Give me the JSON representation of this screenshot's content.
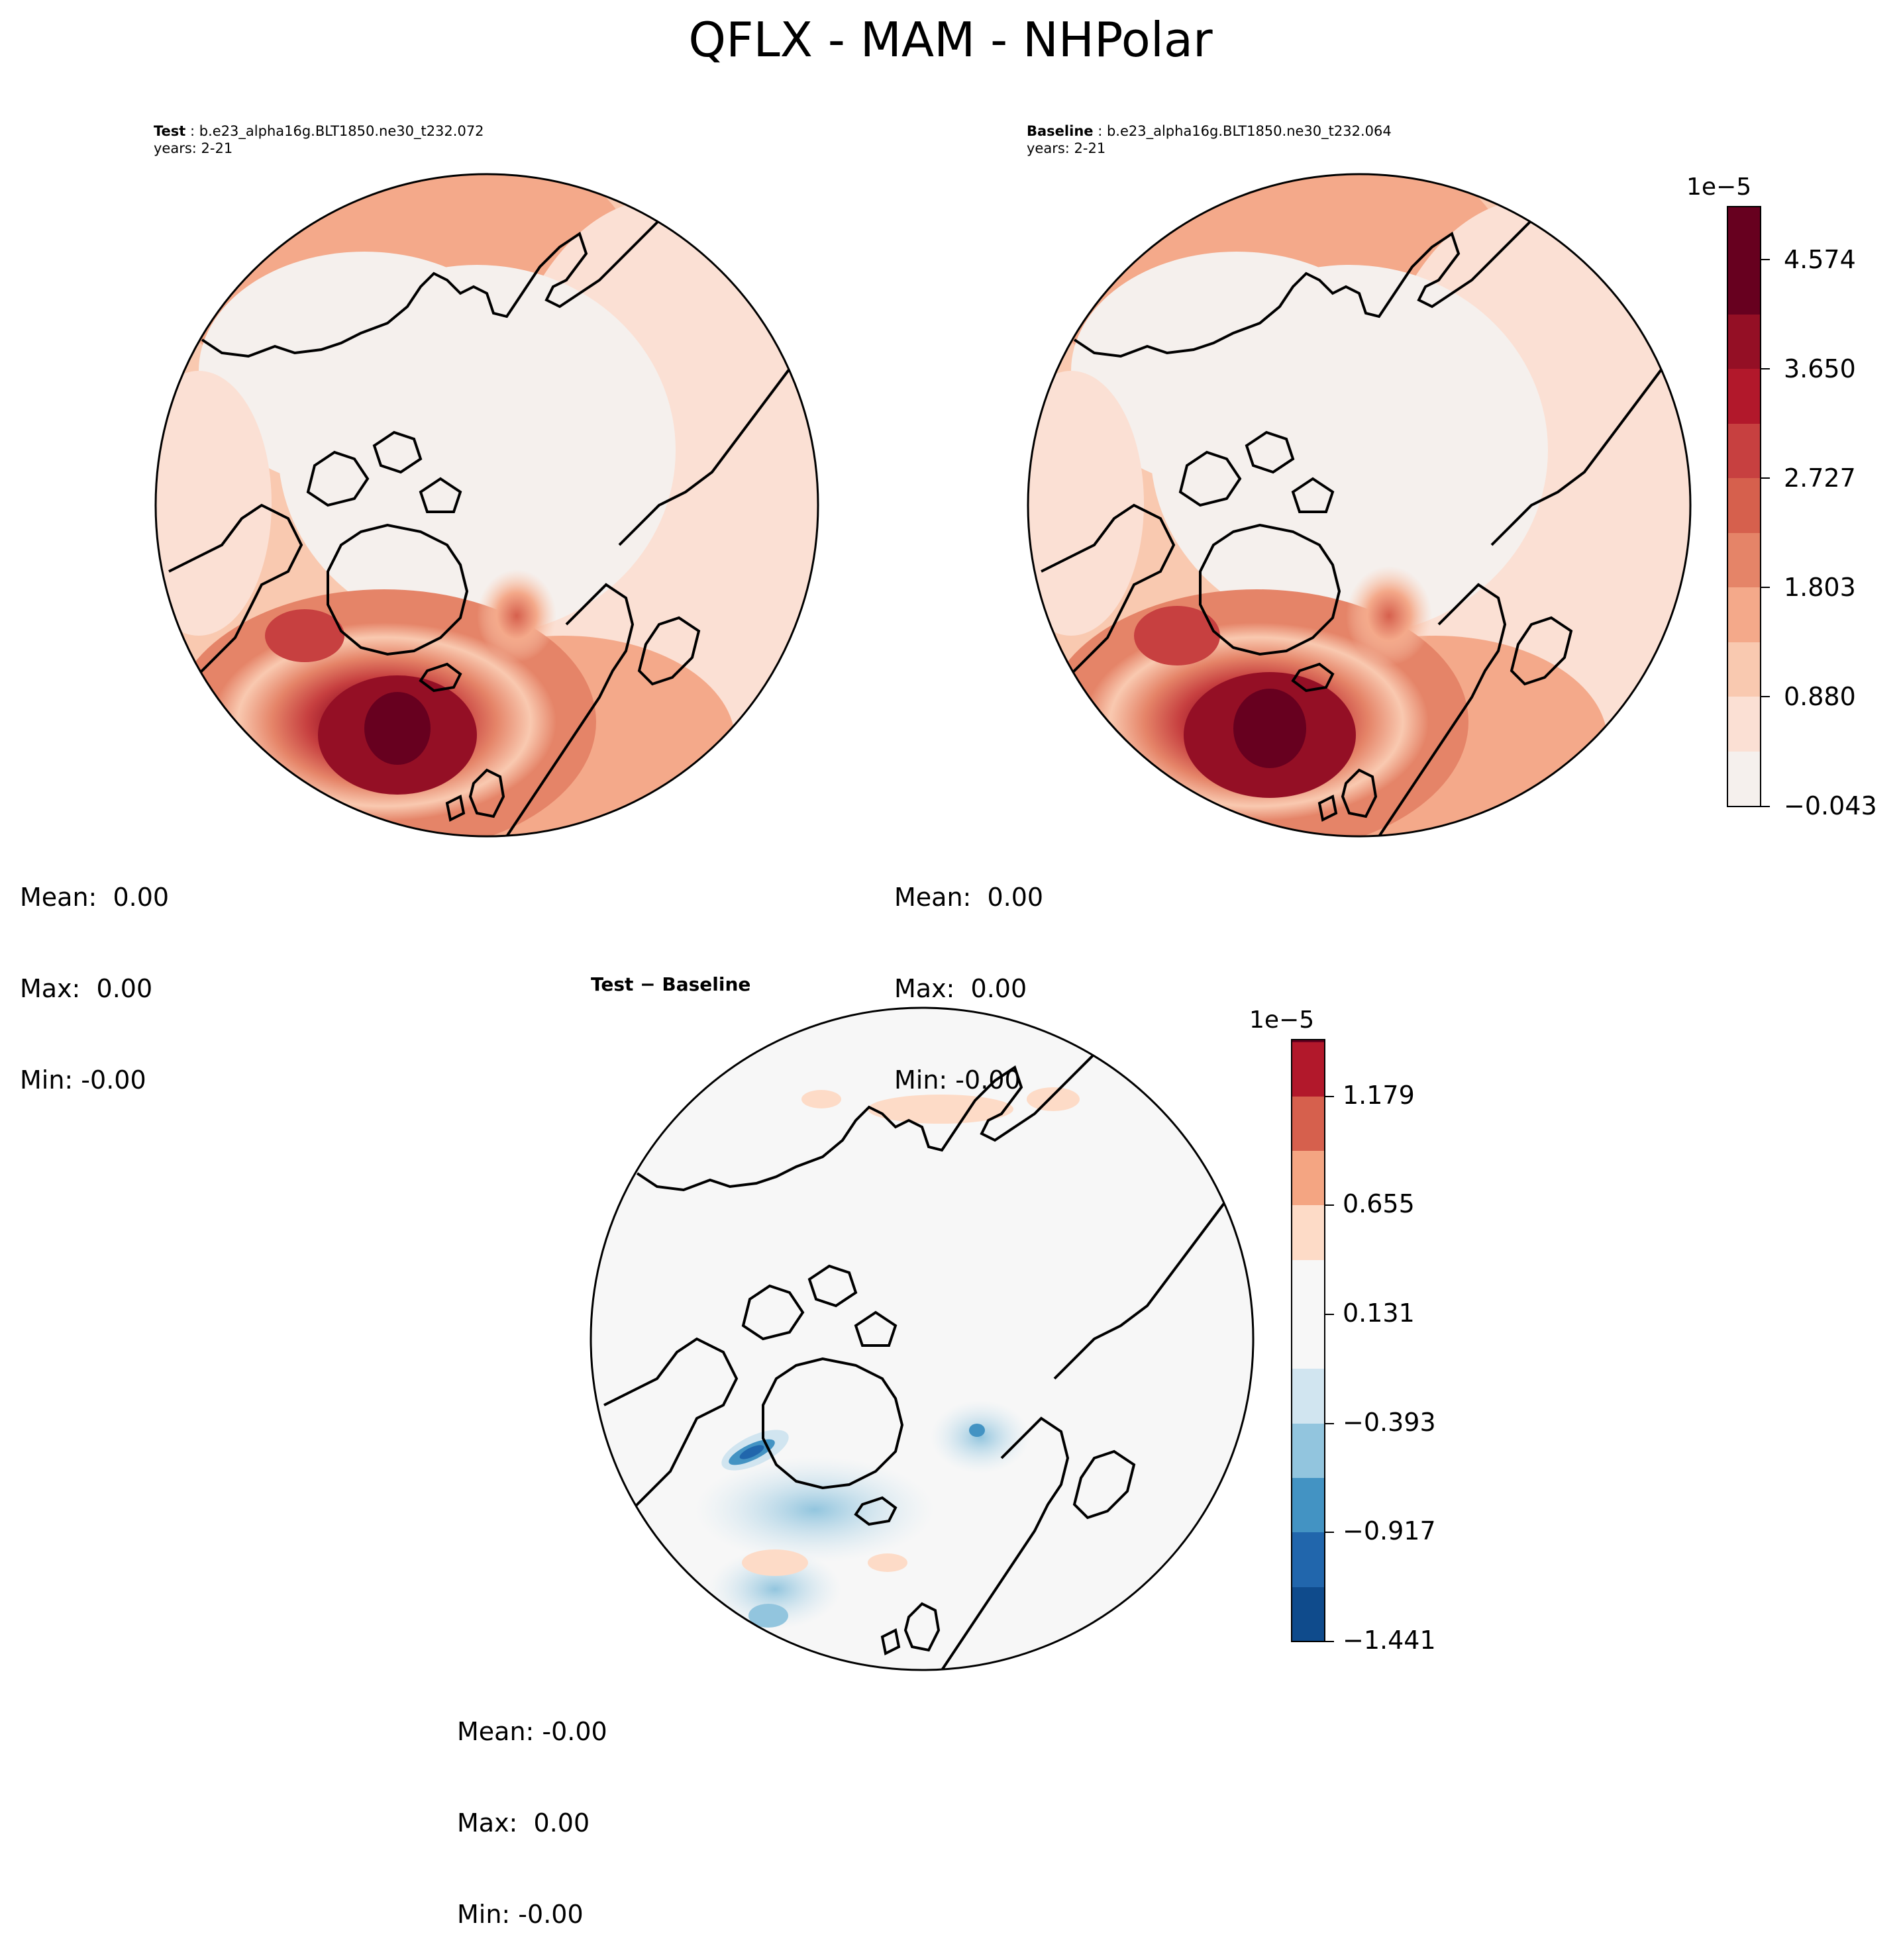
{
  "figure": {
    "title": "QFLX - MAM - NHPolar"
  },
  "panels": {
    "test": {
      "label_bold": "Test",
      "case": "b.e23_alpha16g.BLT1850.ne30_t232.072",
      "years": "years: 2-21",
      "stats": {
        "mean": "Mean:  0.00",
        "max": "Max:  0.00",
        "min": "Min: -0.00"
      }
    },
    "baseline": {
      "label_bold": "Baseline",
      "case": "b.e23_alpha16g.BLT1850.ne30_t232.064",
      "years": "years: 2-21",
      "stats": {
        "mean": "Mean:  0.00",
        "max": "Max:  0.00",
        "min": "Min: -0.00"
      }
    },
    "diff": {
      "title": "Test − Baseline",
      "stats": {
        "mean": "Mean: -0.00",
        "max": "Max:  0.00",
        "min": "Min: -0.00"
      }
    }
  },
  "colorbars": {
    "main": {
      "exponent": "1e−5",
      "ticks": [
        "−0.043",
        "0.880",
        "1.803",
        "2.727",
        "3.650",
        "4.574"
      ],
      "colors": [
        "#f5f0ed",
        "#fbe0d4",
        "#f9c9b0",
        "#f4a98a",
        "#e58468",
        "#d6604d",
        "#c74040",
        "#b2182b",
        "#940f25",
        "#67001f"
      ]
    },
    "diff": {
      "exponent": "1e−5",
      "ticks": [
        "−1.441",
        "−0.917",
        "−0.393",
        "0.131",
        "0.655",
        "1.179"
      ],
      "colors": [
        "#0f4b8c",
        "#2166ac",
        "#4393c3",
        "#92c5de",
        "#d1e5f0",
        "#f7f7f7",
        "#fddbc7",
        "#f4a582",
        "#d6604d",
        "#b2182b",
        "#67001f"
      ]
    }
  },
  "chart_data": [
    {
      "type": "heatmap",
      "title": "Test",
      "projection": "north-polar-stereographic",
      "colorbar_range": [
        -4.3e-07,
        5e-05
      ],
      "colorbar_ticks": [
        -0.043,
        0.88,
        1.803,
        2.727,
        3.65,
        4.574
      ],
      "colorbar_exponent": "1e−5",
      "stats": {
        "mean": 0.0,
        "max": 0.0,
        "min": -0.0
      }
    },
    {
      "type": "heatmap",
      "title": "Baseline",
      "projection": "north-polar-stereographic",
      "colorbar_range": [
        -4.3e-07,
        5e-05
      ],
      "colorbar_ticks": [
        -0.043,
        0.88,
        1.803,
        2.727,
        3.65,
        4.574
      ],
      "colorbar_exponent": "1e−5",
      "stats": {
        "mean": 0.0,
        "max": 0.0,
        "min": -0.0
      }
    },
    {
      "type": "heatmap",
      "title": "Test − Baseline",
      "projection": "north-polar-stereographic",
      "colorbar_range": [
        -1.441e-05,
        1.441e-05
      ],
      "colorbar_ticks": [
        -1.441,
        -0.917,
        -0.393,
        0.131,
        0.655,
        1.179
      ],
      "colorbar_exponent": "1e−5",
      "stats": {
        "mean": -0.0,
        "max": 0.0,
        "min": -0.0
      }
    }
  ]
}
